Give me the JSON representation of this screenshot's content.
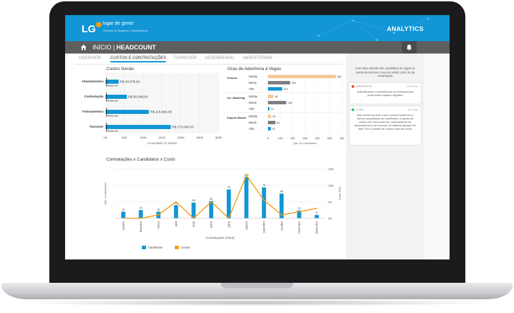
{
  "app": {
    "logo": "LG",
    "brand": "lugar de gente",
    "brand_sub": "Unidade de Negócios Trabalhadores",
    "title": "ANALYTICS",
    "colors": {
      "primary": "#1296d5",
      "orange": "#f39c12",
      "gray": "#7f7f7f",
      "media_bar": "#f5c89a"
    }
  },
  "nav": {
    "home_icon": "home-icon",
    "crumb_home": "INÍCIO",
    "crumb_sep": "|",
    "crumb_current": "HEADCOUNT",
    "bell_icon": "bell-icon"
  },
  "tabs": [
    {
      "label": "OVERVIEW",
      "active": false
    },
    {
      "label": "CUSTOS E CONTRATAÇÕES",
      "active": true
    },
    {
      "label": "TURNOVER",
      "active": false
    },
    {
      "label": "DESEMPENHO",
      "active": false
    },
    {
      "label": "ABSENTEÍSMO",
      "active": false
    }
  ],
  "side": {
    "intro": "Com base adesão dos candidatos de vagas os custos de turnover crescem assim como os de contratação",
    "cards": [
      {
        "tag": "IMPORTANTE",
        "time": "há 3 horas",
        "text": "Indiretamente o investimento em treinamentos pode sofrer impacto negativo",
        "color": "#e74c3c"
      },
      {
        "tag": "ACHEI",
        "time": "há 1 hora",
        "text": "Nos meses de abril, maio e junho mantemos o mesmo quantidade de candidatos. A queda de custos em maio pode ser consequência do aproveitamento de turnover de talentos gerado em abril. Por o padrão de custos volta em junho",
        "color": "#2ecc71"
      }
    ]
  },
  "chart_data": [
    {
      "type": "bar",
      "title": "Custos Gerais",
      "orientation": "horizontal",
      "categories": [
        "Afastamentos",
        "Contratação",
        "Treinamentos",
        "Turnover"
      ],
      "values": [
        34875,
        56589,
        115000,
        173000
      ],
      "value_labels": [
        "R$ 34.875,00",
        "R$ 56.589,00",
        "R$ 115.000,00",
        "R$ 173.000,00"
      ],
      "marker_label": "Média mês",
      "marker_values": [
        3000,
        3000,
        3000,
        3000
      ],
      "xticks": [
        "0K",
        "50K",
        "100K",
        "150K",
        "200K",
        "250K",
        "300K"
      ],
      "xlim": [
        0,
        300000
      ],
      "xlabel": "Acumulado 12 meses",
      "grid": true,
      "color": "#1296d5"
    },
    {
      "type": "bar",
      "title": "Grau de Aderência à Vagas",
      "orientation": "horizontal",
      "groups": [
        {
          "name": "Trainees",
          "rows": [
            {
              "label": "Média",
              "value": 550,
              "level": "Média"
            },
            {
              "label": "Baixa",
              "value": 180,
              "level": "Baixa"
            },
            {
              "label": "Alta",
              "value": 115,
              "level": "Alta"
            }
          ]
        },
        {
          "name": "Ger. Marketing",
          "rows": [
            {
              "label": "Média",
              "value": 45,
              "level": "Média"
            },
            {
              "label": "Baixa",
              "value": 148,
              "level": "Baixa"
            },
            {
              "label": "Alta",
              "value": 12,
              "level": "Alta"
            }
          ]
        },
        {
          "name": "Suporte Mainell",
          "rows": [
            {
              "label": "Média",
              "value": 25,
              "level": "Média"
            },
            {
              "label": "Baixa",
              "value": 61,
              "level": "Baixa"
            },
            {
              "label": "Alta",
              "value": 23,
              "level": "Alta"
            }
          ]
        }
      ],
      "xticks": [
        "0",
        "100",
        "200",
        "300",
        "400",
        "500",
        "600"
      ],
      "xlim": [
        0,
        600
      ],
      "xlabel": "Qtd. de Candidatos",
      "legend_title": "Aderência",
      "legend": [
        {
          "name": "Média",
          "color": "#f5c89a"
        },
        {
          "name": "Baixa",
          "color": "#7f7f7f"
        },
        {
          "name": "Alta",
          "color": "#1296d5"
        }
      ]
    },
    {
      "type": "bar",
      "title": "Contratações x Candidatos x Custo",
      "categories": [
        "janeiro",
        "fevereiro",
        "março",
        "abril",
        "maio",
        "junho",
        "julho",
        "agosto",
        "setembro",
        "outubro",
        "novembro",
        "dezembro"
      ],
      "series": [
        {
          "name": "Candidatos",
          "kind": "bar",
          "color": "#1296d5",
          "values": [
            16,
            20,
            16,
            32,
            38,
            42,
            70,
            100,
            75,
            60,
            19,
            8
          ]
        },
        {
          "name": "Custos",
          "kind": "line",
          "color": "#f39c12",
          "values": [
            0,
            0,
            1000,
            5000,
            0,
            5000,
            0,
            13000,
            5500,
            1000,
            2000,
            3000
          ]
        }
      ],
      "bar_labels": [
        "16",
        "20",
        "16",
        "32",
        "38",
        "42",
        "70",
        "100",
        "75",
        "60",
        "19",
        "8"
      ],
      "ylabel": "Qtd. Contratações",
      "ylabel2": "Custo (R$)",
      "y2ticks": [
        "0K",
        "5K",
        "10K",
        "15K"
      ],
      "y2lim": [
        0,
        15000
      ],
      "ylim": [
        0,
        120
      ],
      "xlabel": "Contratações (2016)"
    }
  ]
}
